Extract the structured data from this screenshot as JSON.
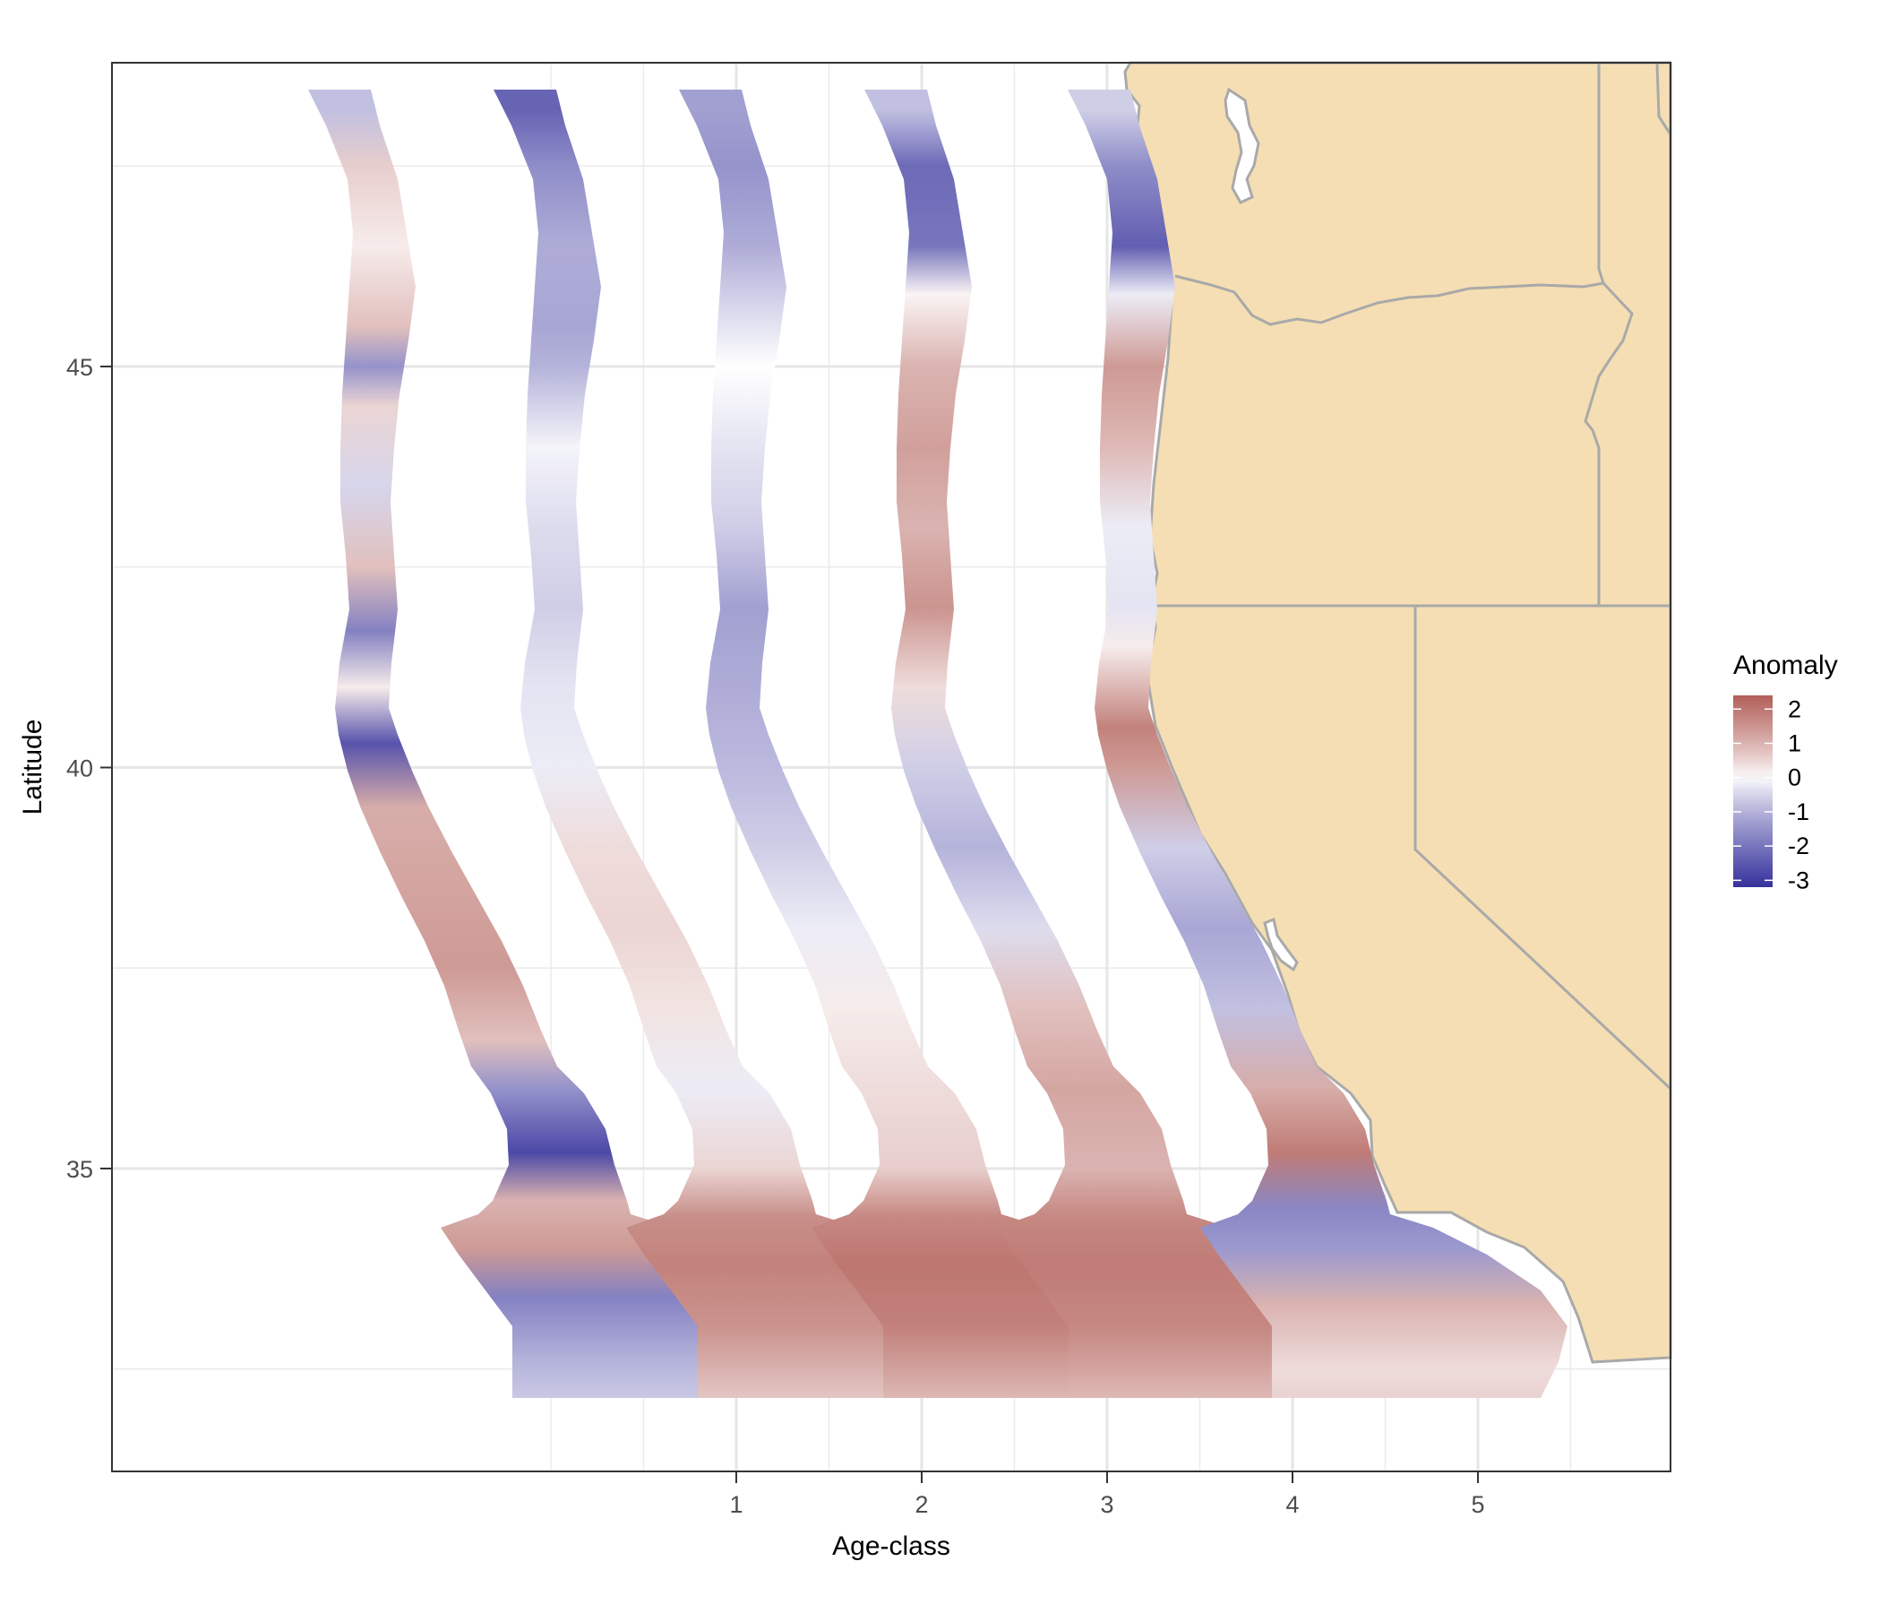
{
  "chart_data": {
    "type": "heatmap",
    "title": "",
    "xlabel": "Age-class",
    "ylabel": "Latitude",
    "x_ticks": [
      "1",
      "2",
      "3",
      "4",
      "5"
    ],
    "y_ticks": [
      "35",
      "40",
      "45"
    ],
    "ylim": [
      31.2,
      48.8
    ],
    "grid": true,
    "legend": {
      "title": "Anomaly",
      "labels": [
        "2",
        "1",
        "0",
        "-1",
        "-2",
        "-3"
      ],
      "range": [
        -3.2,
        2.4
      ],
      "placement": "right"
    },
    "colors": {
      "positive": "#b2182b",
      "neutral": "#ffffff",
      "negative": "#2d2a8f",
      "land": "#f5deb3",
      "land_border": "#a9a9a9"
    },
    "panels": [
      {
        "age_class": "1",
        "profile": [
          [
            48.2,
            -0.8
          ],
          [
            47.5,
            0.6
          ],
          [
            46.5,
            0.2
          ],
          [
            45.5,
            0.8
          ],
          [
            45.0,
            -1.5
          ],
          [
            44.5,
            0.5
          ],
          [
            43.5,
            -0.5
          ],
          [
            42.5,
            0.8
          ],
          [
            41.7,
            -1.8
          ],
          [
            41.0,
            0.2
          ],
          [
            40.3,
            -2.6
          ],
          [
            39.5,
            1.1
          ],
          [
            38.7,
            1.2
          ],
          [
            37.5,
            1.4
          ],
          [
            36.6,
            0.8
          ],
          [
            36.0,
            -1.5
          ],
          [
            35.2,
            -2.8
          ],
          [
            34.6,
            1.0
          ],
          [
            34.0,
            1.4
          ],
          [
            33.4,
            -1.8
          ],
          [
            32.6,
            -1.0
          ],
          [
            32.0,
            -0.6
          ]
        ]
      },
      {
        "age_class": "2",
        "profile": [
          [
            48.2,
            -2.3
          ],
          [
            47.5,
            -1.6
          ],
          [
            46.5,
            -1.1
          ],
          [
            45.5,
            -1.2
          ],
          [
            45.0,
            -1.0
          ],
          [
            44.0,
            -0.1
          ],
          [
            43.0,
            -0.4
          ],
          [
            42.0,
            -0.6
          ],
          [
            41.0,
            -0.3
          ],
          [
            40.0,
            -0.2
          ],
          [
            39.0,
            0.4
          ],
          [
            38.0,
            0.5
          ],
          [
            37.0,
            0.3
          ],
          [
            36.0,
            -0.2
          ],
          [
            35.0,
            0.5
          ],
          [
            34.4,
            1.6
          ],
          [
            33.8,
            1.8
          ],
          [
            33.0,
            1.5
          ],
          [
            32.0,
            0.6
          ]
        ]
      },
      {
        "age_class": "3",
        "profile": [
          [
            48.2,
            -1.3
          ],
          [
            47.5,
            -1.5
          ],
          [
            46.5,
            -1.1
          ],
          [
            45.5,
            -0.3
          ],
          [
            45.0,
            0.0
          ],
          [
            44.0,
            -0.3
          ],
          [
            43.0,
            -0.6
          ],
          [
            42.0,
            -1.3
          ],
          [
            41.0,
            -1.1
          ],
          [
            40.0,
            -0.9
          ],
          [
            39.0,
            -0.6
          ],
          [
            38.0,
            -0.2
          ],
          [
            37.0,
            0.2
          ],
          [
            36.0,
            0.4
          ],
          [
            35.0,
            0.6
          ],
          [
            34.4,
            1.7
          ],
          [
            33.8,
            2.0
          ],
          [
            33.0,
            1.8
          ],
          [
            32.0,
            0.8
          ]
        ]
      },
      {
        "age_class": "4",
        "profile": [
          [
            48.2,
            -0.8
          ],
          [
            47.5,
            -2.2
          ],
          [
            46.5,
            -2.0
          ],
          [
            45.9,
            0.1
          ],
          [
            45.0,
            1.0
          ],
          [
            44.0,
            1.3
          ],
          [
            43.0,
            1.0
          ],
          [
            42.0,
            1.5
          ],
          [
            41.0,
            0.4
          ],
          [
            40.0,
            -0.6
          ],
          [
            39.0,
            -1.0
          ],
          [
            38.0,
            -0.4
          ],
          [
            37.0,
            0.8
          ],
          [
            36.0,
            1.2
          ],
          [
            35.0,
            1.0
          ],
          [
            34.4,
            1.7
          ],
          [
            33.8,
            1.9
          ],
          [
            33.0,
            1.7
          ],
          [
            32.0,
            0.8
          ]
        ]
      },
      {
        "age_class": "5",
        "profile": [
          [
            48.2,
            -0.6
          ],
          [
            47.5,
            -1.6
          ],
          [
            46.5,
            -2.4
          ],
          [
            45.9,
            -0.2
          ],
          [
            45.0,
            1.4
          ],
          [
            44.0,
            0.9
          ],
          [
            43.0,
            -0.2
          ],
          [
            42.0,
            -0.3
          ],
          [
            41.5,
            0.2
          ],
          [
            40.5,
            1.8
          ],
          [
            40.0,
            1.4
          ],
          [
            39.0,
            -0.6
          ],
          [
            38.0,
            -1.2
          ],
          [
            37.0,
            -0.8
          ],
          [
            36.0,
            1.1
          ],
          [
            35.2,
            1.9
          ],
          [
            34.5,
            -1.7
          ],
          [
            34.0,
            -1.4
          ],
          [
            33.3,
            1.0
          ],
          [
            32.5,
            0.4
          ],
          [
            32.0,
            0.6
          ]
        ]
      }
    ]
  }
}
